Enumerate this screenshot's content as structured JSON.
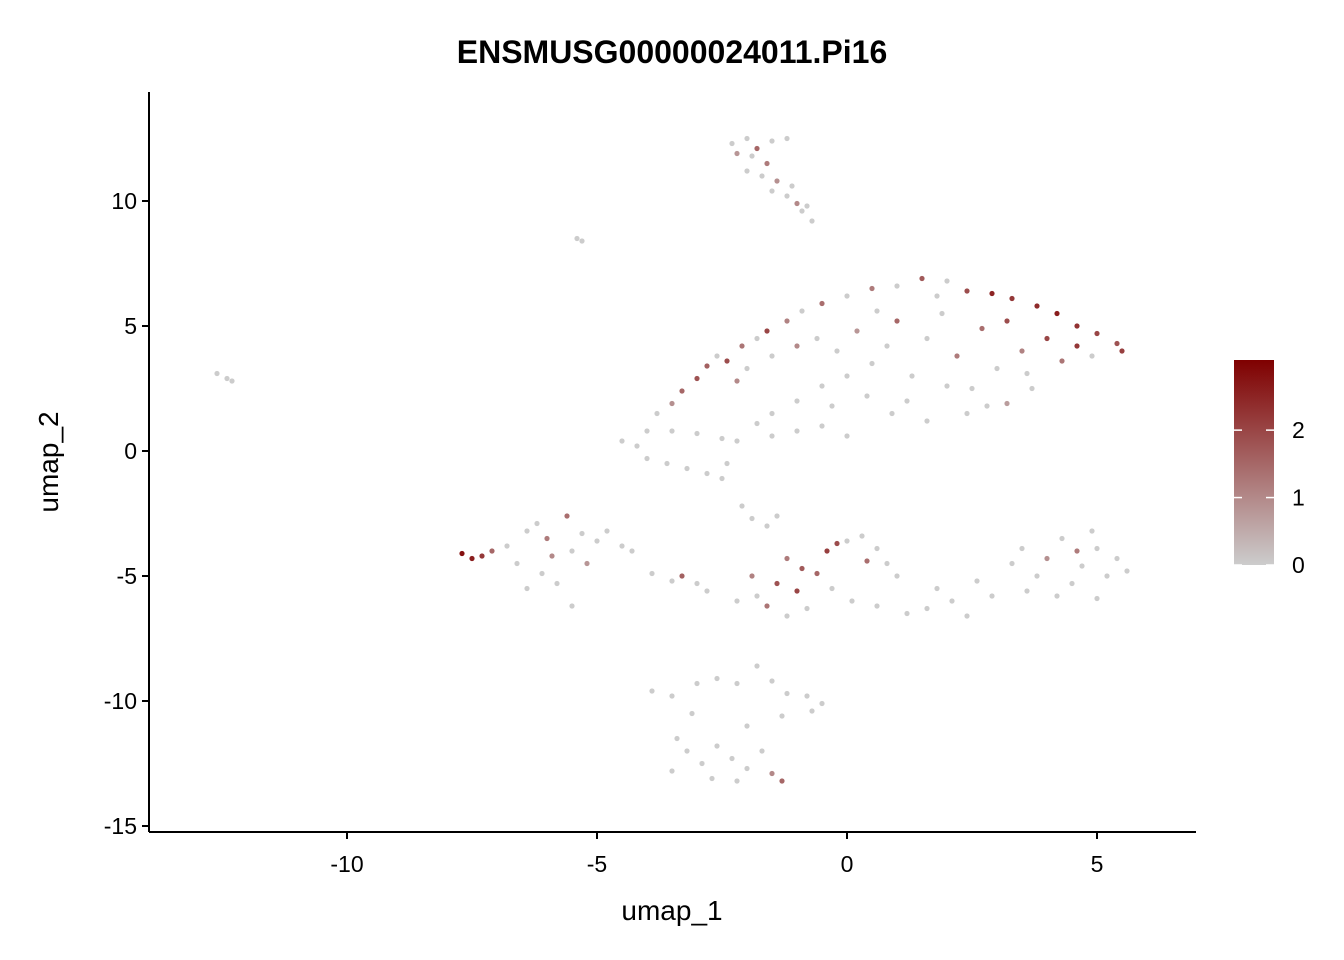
{
  "chart_data": {
    "type": "scatter",
    "title": "ENSMUSG00000024011.Pi16",
    "x_label": "umap_1",
    "y_label": "umap_2",
    "xlim": [
      -13.96,
      6.98
    ],
    "ylim": [
      -15.24,
      14.36
    ],
    "xticks": [
      -10,
      -5,
      0,
      5
    ],
    "yticks": [
      -15,
      -10,
      -5,
      0,
      5,
      10
    ],
    "color_low": "#cccccc",
    "color_high": "#7f0000",
    "color_lim": [
      0,
      3.04
    ],
    "colorbar_ticks": [
      0,
      1,
      2
    ],
    "x": [
      -2.3,
      -2.0,
      -1.5,
      -1.2,
      -2.2,
      -1.9,
      -1.6,
      -2.0,
      -1.7,
      -1.4,
      -1.5,
      -1.2,
      -1.0,
      -0.9,
      -0.7,
      -1.8,
      -1.1,
      -0.8,
      -4.5,
      -4.2,
      -4.0,
      -3.8,
      -3.5,
      -3.3,
      -3.0,
      -2.8,
      -2.6,
      -2.4,
      -2.1,
      -1.8,
      -1.6,
      -1.2,
      -0.9,
      -0.5,
      0,
      0.5,
      1.0,
      1.5,
      2.0,
      2.4,
      2.9,
      3.3,
      3.8,
      4.2,
      4.6,
      5.0,
      5.4,
      5.5,
      -2.0,
      -1.5,
      -1.0,
      -0.6,
      -0.2,
      0.2,
      0.5,
      0.8,
      1.0,
      1.3,
      1.6,
      1.9,
      2.2,
      2.5,
      2.7,
      3.0,
      3.2,
      3.5,
      3.7,
      4.0,
      4.3,
      4.6,
      4.9,
      0.0,
      0.4,
      0.9,
      1.2,
      1.6,
      2.0,
      2.4,
      2.8,
      3.2,
      3.6,
      -0.5,
      -1.0,
      -1.5,
      -0.3,
      0.6,
      -2.2,
      1.8,
      -3.5,
      -3.0,
      -2.5,
      -2.2,
      -1.8,
      -1.5,
      -1.0,
      -0.5,
      0,
      -4.0,
      -3.6,
      -3.2,
      -2.8,
      -2.5,
      -2.4,
      -2.1,
      -1.9,
      -1.6,
      -1.4,
      -7.7,
      -7.5,
      -7.3,
      -7.1,
      -6.8,
      -6.6,
      -6.4,
      -6.2,
      -6.0,
      -6.1,
      -5.8,
      -5.5,
      -5.6,
      -5.3,
      -5.0,
      -5.2,
      -5.5,
      -4.8,
      -4.5,
      -4.3,
      -6.4,
      -5.9,
      -3.9,
      -3.5,
      -3.3,
      -3.0,
      -2.8,
      -1.9,
      -1.8,
      -1.6,
      -1.4,
      -1.2,
      -1.0,
      -0.8,
      -0.6,
      -0.4,
      -0.2,
      0,
      0.3,
      0.6,
      0.8,
      0.4,
      -0.3,
      0.1,
      0.6,
      1.0,
      -1.2,
      -2.2,
      -0.9,
      1.2,
      1.6,
      1.8,
      2.1,
      2.4,
      2.6,
      2.9,
      3.3,
      3.5,
      3.8,
      4.0,
      4.3,
      4.5,
      4.7,
      5.0,
      5.2,
      5.4,
      5.6,
      4.9,
      3.6,
      4.2,
      5.0,
      4.6,
      -3.9,
      -3.5,
      -3.0,
      -2.6,
      -2.2,
      -1.8,
      -1.5,
      -1.2,
      -0.8,
      -0.5,
      -0.7,
      -1.3,
      -2.0,
      -3.4,
      -3.2,
      -2.9,
      -2.6,
      -2.3,
      -2.0,
      -1.7,
      -1.5,
      -1.3,
      -3.5,
      -2.7,
      -2.2,
      -3.1,
      -5.4,
      -5.3,
      -12.6,
      -12.3,
      -12.4
    ],
    "y": [
      12.3,
      12.5,
      12.4,
      12.5,
      11.9,
      11.8,
      11.5,
      11.2,
      11.0,
      10.8,
      10.4,
      10.2,
      9.9,
      9.6,
      9.2,
      12.1,
      10.6,
      9.8,
      0.4,
      0.2,
      0.8,
      1.5,
      1.9,
      2.4,
      2.9,
      3.4,
      3.8,
      3.6,
      4.2,
      4.5,
      4.8,
      5.2,
      5.6,
      5.9,
      6.2,
      6.5,
      6.6,
      6.9,
      6.8,
      6.4,
      6.3,
      6.1,
      5.8,
      5.5,
      5.0,
      4.7,
      4.3,
      4.0,
      3.3,
      3.8,
      4.2,
      4.5,
      4.0,
      4.8,
      3.5,
      4.2,
      5.2,
      3.0,
      4.5,
      5.5,
      3.8,
      2.5,
      4.9,
      3.3,
      5.2,
      4.0,
      2.5,
      4.5,
      3.6,
      4.2,
      3.8,
      3.0,
      2.2,
      1.5,
      2.0,
      1.2,
      2.6,
      1.5,
      1.8,
      1.9,
      3.1,
      2.6,
      2.0,
      1.5,
      1.8,
      5.6,
      2.8,
      6.2,
      0.8,
      0.7,
      0.5,
      0.4,
      1.1,
      0.6,
      0.8,
      1.0,
      0.6,
      -0.3,
      -0.5,
      -0.7,
      -0.9,
      -1.1,
      -0.5,
      -2.2,
      -2.7,
      -3.0,
      -2.6,
      -4.1,
      -4.3,
      -4.2,
      -4.0,
      -3.8,
      -4.5,
      -3.2,
      -2.9,
      -3.5,
      -4.9,
      -5.3,
      -4.0,
      -2.6,
      -3.3,
      -3.6,
      -4.5,
      -6.2,
      -3.2,
      -3.8,
      -4.0,
      -5.5,
      -4.2,
      -4.9,
      -5.2,
      -5.0,
      -5.3,
      -5.6,
      -5.0,
      -5.8,
      -6.2,
      -5.3,
      -4.3,
      -5.6,
      -6.3,
      -4.9,
      -4.0,
      -3.7,
      -3.6,
      -3.4,
      -3.9,
      -4.5,
      -4.4,
      -5.5,
      -6.0,
      -6.2,
      -5.0,
      -6.6,
      -6.0,
      -4.7,
      -6.5,
      -6.3,
      -5.5,
      -6.0,
      -6.6,
      -5.2,
      -5.8,
      -4.5,
      -3.9,
      -5.0,
      -4.3,
      -3.5,
      -5.3,
      -4.6,
      -3.9,
      -5.0,
      -4.3,
      -4.8,
      -3.2,
      -5.6,
      -5.8,
      -5.9,
      -4.0,
      -9.6,
      -9.8,
      -9.3,
      -9.1,
      -9.3,
      -8.6,
      -9.2,
      -9.7,
      -9.8,
      -10.1,
      -10.4,
      -10.6,
      -11.0,
      -11.5,
      -12.0,
      -12.5,
      -11.8,
      -12.3,
      -12.7,
      -12.0,
      -12.9,
      -13.2,
      -12.8,
      -13.1,
      -13.2,
      -10.5,
      8.5,
      8.4,
      3.1,
      2.8,
      2.9
    ],
    "values": [
      0,
      0,
      0,
      0,
      0.8,
      0,
      1.2,
      0,
      0,
      0.9,
      0,
      0,
      1.0,
      0,
      0,
      1.5,
      0,
      0,
      0,
      0,
      0,
      0,
      0.9,
      1.5,
      1.8,
      1.6,
      0,
      1.9,
      1.3,
      0,
      2.0,
      1.1,
      0,
      1.4,
      0,
      1.2,
      0,
      1.7,
      0,
      1.9,
      2.5,
      2.2,
      2.4,
      2.6,
      2.3,
      2.0,
      1.8,
      2.1,
      0,
      0,
      1.0,
      0,
      0,
      0.8,
      0,
      0,
      1.5,
      0,
      0,
      0,
      1.2,
      0,
      1.4,
      0,
      1.9,
      1.1,
      0,
      2.0,
      1.3,
      2.2,
      0,
      0,
      0,
      0,
      0,
      0,
      0,
      0,
      0,
      0.7,
      0,
      0,
      0,
      0,
      0,
      0,
      1.0,
      0,
      0,
      0,
      0,
      0,
      0,
      0,
      0,
      0,
      0,
      0,
      0,
      0,
      0,
      0,
      0,
      0,
      0,
      0,
      0,
      2.8,
      2.6,
      2.2,
      1.5,
      0,
      0,
      0,
      0,
      1.2,
      0,
      0,
      0,
      1.4,
      0,
      0,
      0.8,
      0,
      0,
      0,
      0,
      0,
      1.0,
      0,
      0,
      1.6,
      0,
      0,
      1.1,
      0,
      1.3,
      1.8,
      1.2,
      2.0,
      0,
      1.5,
      2.1,
      1.9,
      0,
      0,
      0,
      0,
      1.4,
      0,
      0,
      0,
      0,
      0,
      0,
      1.7,
      0,
      0,
      0,
      0,
      0,
      0,
      0,
      0,
      0,
      0,
      0.9,
      0,
      0,
      0,
      0,
      0,
      0,
      0,
      0,
      0,
      0,
      0,
      1.2,
      0,
      0,
      0,
      0,
      0,
      0,
      0,
      0,
      0,
      0,
      0,
      0,
      0,
      0,
      0,
      0,
      0,
      0,
      0,
      0,
      1.0,
      1.5,
      0,
      0,
      0,
      0,
      0,
      0,
      0,
      0,
      0
    ]
  }
}
